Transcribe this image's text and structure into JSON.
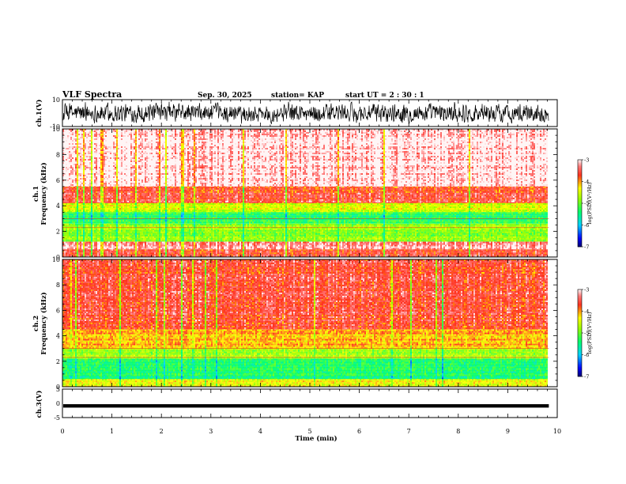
{
  "header": {
    "title": "VLF Spectra",
    "date": "Sep. 30, 2025",
    "station": "station= KAP",
    "start": "start  UT  =   2  : 30 : 1"
  },
  "colors": {
    "spectrum_high": "#ff2a1f",
    "spectrum_mid": "#ffff00",
    "spectrum_low": "#00ff66",
    "trace": "#000000"
  },
  "chart_data": [
    {
      "type": "line",
      "name": "ch1-waveform",
      "ylabel": "ch.1(V)",
      "ylim": [
        -10,
        10
      ],
      "yticks": [
        "10",
        "-10"
      ],
      "x_range_min": [
        0,
        9.83
      ],
      "note": "broadband noise waveform, roughly -7 to +8 V"
    },
    {
      "type": "heatmap",
      "name": "ch1-spectrogram",
      "ylabel_top": "ch.1",
      "ylabel": "Frequency (kHz)",
      "ylim": [
        0,
        10
      ],
      "yticks": [
        "0",
        "2",
        "4",
        "6",
        "8",
        "10"
      ],
      "x_range_min": [
        0,
        9.83
      ],
      "bands": [
        {
          "freq_khz": [
            5.5,
            10
          ],
          "level": -3.0
        },
        {
          "freq_khz": [
            4.2,
            5.5
          ],
          "level": -3.6
        },
        {
          "freq_khz": [
            3.5,
            4.2
          ],
          "level": -4.5
        },
        {
          "freq_khz": [
            2.6,
            3.5
          ],
          "level": -5.3
        },
        {
          "freq_khz": [
            1.2,
            2.6
          ],
          "level": -4.8
        },
        {
          "freq_khz": [
            0.6,
            1.2
          ],
          "level": -3.2
        },
        {
          "freq_khz": [
            0,
            0.6
          ],
          "level": -3.6
        }
      ],
      "colorbar": {
        "label": "log(PSD)(V²/Hz)",
        "range": [
          -7,
          -3
        ],
        "ticks": [
          "-3",
          "-4",
          "-5",
          "-6",
          "-7"
        ]
      }
    },
    {
      "type": "heatmap",
      "name": "ch2-spectrogram",
      "ylabel_top": "ch.2",
      "ylabel": "Frequency (kHz)",
      "ylim": [
        0,
        10
      ],
      "yticks": [
        "0",
        "2",
        "4",
        "6",
        "8",
        "10"
      ],
      "x_range_min": [
        0,
        9.83
      ],
      "bands": [
        {
          "freq_khz": [
            4.5,
            10
          ],
          "level": -3.6
        },
        {
          "freq_khz": [
            3.0,
            4.5
          ],
          "level": -4.1
        },
        {
          "freq_khz": [
            2.2,
            3.0
          ],
          "level": -4.7
        },
        {
          "freq_khz": [
            0.6,
            2.2
          ],
          "level": -5.4
        },
        {
          "freq_khz": [
            0,
            0.6
          ],
          "level": -4.4
        }
      ],
      "colorbar": {
        "label": "log(PSD)(V²/Hz)",
        "range": [
          -7,
          -3
        ],
        "ticks": [
          "-3",
          "-4",
          "-5",
          "-6",
          "-7"
        ]
      }
    },
    {
      "type": "line",
      "name": "ch3-waveform",
      "ylabel": "ch.3(V)",
      "ylim": [
        -5,
        5
      ],
      "yticks": [
        "5",
        "0",
        "-5"
      ],
      "x_range_min": [
        0,
        9.83
      ],
      "note": "dense oscillation between about -1.5 and -0.3 V"
    }
  ],
  "xaxis": {
    "label": "Time (min)",
    "range": [
      0,
      10
    ],
    "ticks": [
      "0",
      "1",
      "2",
      "3",
      "4",
      "5",
      "6",
      "7",
      "8",
      "9",
      "10"
    ]
  }
}
